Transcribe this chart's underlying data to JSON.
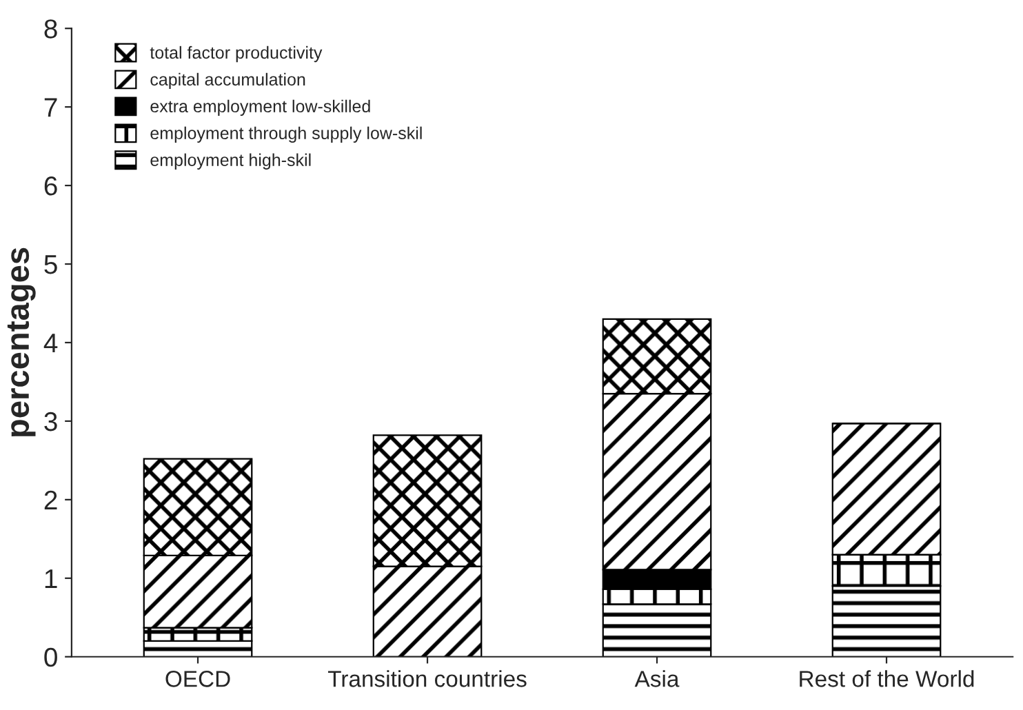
{
  "chart_data": {
    "type": "bar",
    "stacked": true,
    "ylabel": "percentages",
    "categories": [
      "OECD",
      "Transition countries",
      "Asia",
      "Rest of the World"
    ],
    "series": [
      {
        "name": "employment high-skil",
        "color": "#000000",
        "values": [
          0.2,
          0,
          0.67,
          0.9
        ]
      },
      {
        "name": "employment through supply low-skil",
        "color": "#000000",
        "values": [
          0.17,
          0,
          0.19,
          0.4
        ]
      },
      {
        "name": "extra employment low-skilled",
        "color": "#000000",
        "values": [
          0,
          0,
          0.25,
          0
        ]
      },
      {
        "name": "capital accumulation",
        "color": "#000000",
        "values": [
          0.92,
          1.15,
          2.24,
          1.67
        ]
      },
      {
        "name": "total factor productivity",
        "color": "#000000",
        "values": [
          1.23,
          1.67,
          0.95,
          0
        ]
      }
    ],
    "ylim": [
      0,
      8
    ],
    "yticks": [
      0,
      1,
      2,
      3,
      4,
      5,
      6,
      7,
      8
    ],
    "grid": false,
    "legend": "top left"
  }
}
